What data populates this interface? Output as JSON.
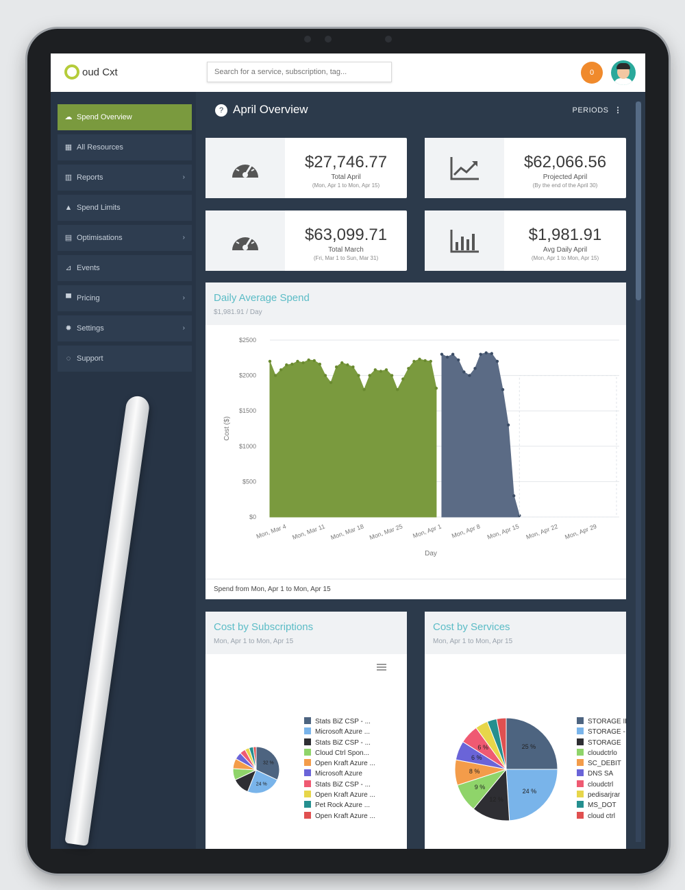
{
  "app": {
    "logo_text": "oud Cxt",
    "search_placeholder": "Search for a service, subscription, tag...",
    "notification_count": "0",
    "colors": {
      "accent_green": "#7a9a3e",
      "sidebar": "#273445",
      "main_bg": "#2c3a4b",
      "title_teal": "#5bbcc6",
      "notif_orange": "#f08a2c"
    }
  },
  "sidebar": {
    "items": [
      {
        "label": "Spend Overview",
        "icon": "cloud-icon",
        "active": true,
        "has_chevron": false
      },
      {
        "label": "All Resources",
        "icon": "grid-icon",
        "active": false,
        "has_chevron": false
      },
      {
        "label": "Reports",
        "icon": "bar-chart-icon",
        "active": false,
        "has_chevron": true
      },
      {
        "label": "Spend Limits",
        "icon": "bell-icon",
        "active": false,
        "has_chevron": false
      },
      {
        "label": "Optimisations",
        "icon": "table-icon",
        "active": false,
        "has_chevron": true
      },
      {
        "label": "Events",
        "icon": "rss-icon",
        "active": false,
        "has_chevron": false
      },
      {
        "label": "Pricing",
        "icon": "cart-icon",
        "active": false,
        "has_chevron": true
      },
      {
        "label": "Settings",
        "icon": "gear-icon",
        "active": false,
        "has_chevron": true
      },
      {
        "label": "Support",
        "icon": "lightbulb-icon",
        "active": false,
        "has_chevron": false
      }
    ]
  },
  "main": {
    "title": "April Overview",
    "periods_label": "PERIODS",
    "stats": [
      {
        "value": "$27,746.77",
        "label": "Total April",
        "range": "(Mon, Apr 1 to Mon, Apr 15)",
        "icon": "speedometer-icon"
      },
      {
        "value": "$62,066.56",
        "label": "Projected April",
        "range": "(By the end of the April 30)",
        "icon": "trend-up-icon"
      },
      {
        "value": "$63,099.71",
        "label": "Total March",
        "range": "(Fri, Mar 1 to Sun, Mar 31)",
        "icon": "speedometer-icon"
      },
      {
        "value": "$1,981.91",
        "label": "Avg Daily April",
        "range": "(Mon, Apr 1 to Mon, Apr 15)",
        "icon": "bar-chart-icon"
      }
    ],
    "daily_panel": {
      "title": "Daily Average Spend",
      "subtitle": "$1,981.91 / Day",
      "footer": "Spend from Mon, Apr 1 to Mon, Apr 15"
    },
    "subs_panel": {
      "title": "Cost by Subscriptions",
      "subtitle": "Mon, Apr 1 to Mon, Apr 15"
    },
    "services_panel": {
      "title": "Cost by Services",
      "subtitle": "Mon, Apr 1 to Mon, Apr 15"
    }
  },
  "chart_data": [
    {
      "type": "area",
      "title": "Daily Average Spend",
      "xlabel": "Day",
      "ylabel": "Cost ($)",
      "ylim": [
        0,
        2500
      ],
      "yticks": [
        "$0",
        "$500",
        "$1000",
        "$1500",
        "$2000",
        "$2500"
      ],
      "xticks": [
        "Mon, Mar 4",
        "Mon, Mar 11",
        "Mon, Mar 18",
        "Mon, Mar 25",
        "Mon, Apr 1",
        "Mon, Apr 8",
        "Mon, Apr 15",
        "Mon, Apr 22",
        "Mon, Apr 29"
      ],
      "grid": true,
      "series": [
        {
          "color": "#7a9a3e",
          "x_start": "2019-03-01",
          "values": [
            2200,
            2000,
            2080,
            2150,
            2160,
            2200,
            2180,
            2220,
            2210,
            2160,
            2000,
            1900,
            2120,
            2180,
            2150,
            2120,
            2000,
            1800,
            2000,
            2080,
            2060,
            2080,
            2000,
            1800,
            1950,
            2100,
            2200,
            2230,
            2210,
            2200,
            1820
          ]
        },
        {
          "color": "#5b6b85",
          "x_start": "2019-04-01",
          "values": [
            2300,
            2260,
            2300,
            2220,
            2050,
            2000,
            2100,
            2300,
            2320,
            2310,
            2200,
            1800,
            1300,
            300,
            20
          ]
        }
      ]
    },
    {
      "type": "pie",
      "title": "Cost by Subscriptions",
      "labels": [
        "Stats BiZ CSP - ...",
        "Microsoft Azure ...",
        "Stats BiZ CSP - ...",
        "Cloud Ctrl Spon...",
        "Open Kraft Azure ...",
        "Microsoft Azure",
        "Stats BiZ CSP - ...",
        "Open Kraft Azure ...",
        "Pet Rock Azure ...",
        "Open Kraft Azure ..."
      ],
      "values": [
        32,
        24,
        12,
        8,
        7,
        5,
        4,
        3,
        3,
        2
      ],
      "slice_labels": [
        "32 %",
        "24 %",
        "",
        "",
        "",
        "",
        "",
        "",
        "",
        ""
      ],
      "colors": [
        "#4d6480",
        "#79b4ea",
        "#2e2e33",
        "#8fd46a",
        "#f39c4a",
        "#6a64d8",
        "#ef5a72",
        "#e7d64a",
        "#258f8f",
        "#e05050"
      ]
    },
    {
      "type": "pie",
      "title": "Cost by Services",
      "labels": [
        "STORAGE ID",
        "STORAGE - IO",
        "STORAGE",
        "cloudctrlo",
        "SC_DEBIT",
        "DNS SA",
        "cloudctrl",
        "pedisarjrar",
        "MS_DOT",
        "cloud ctrl"
      ],
      "values": [
        25,
        24,
        12,
        9,
        8,
        6,
        6,
        4,
        3,
        3
      ],
      "slice_labels": [
        "25 %",
        "24 %",
        "12 %",
        "9 %",
        "8 %",
        "6 %",
        "6 %",
        "",
        "",
        ""
      ],
      "colors": [
        "#4d6480",
        "#79b4ea",
        "#2e2e33",
        "#8fd46a",
        "#f39c4a",
        "#6a64d8",
        "#ef5a72",
        "#e7d64a",
        "#258f8f",
        "#e05050"
      ]
    }
  ]
}
